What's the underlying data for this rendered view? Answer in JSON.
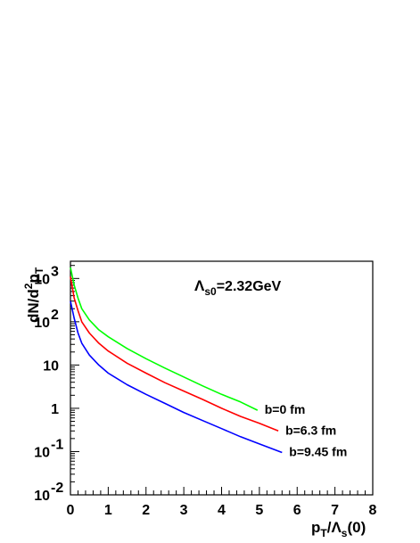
{
  "chart_data": {
    "type": "line",
    "title": "",
    "annotation": "Λ_s0=2.32GeV",
    "xlabel": "p_T/Λ_s(0)",
    "ylabel": "dN/d²p_T",
    "xlim": [
      0,
      8
    ],
    "ylim": [
      0.01,
      2500
    ],
    "yscale": "log",
    "grid": false,
    "x_ticks": [
      "0",
      "1",
      "2",
      "3",
      "4",
      "5",
      "6",
      "7",
      "8"
    ],
    "y_ticks": [
      {
        "value": 0.01,
        "base": "10",
        "exp": "-2"
      },
      {
        "value": 0.1,
        "base": "10",
        "exp": "-1"
      },
      {
        "value": 1,
        "base": "1",
        "exp": ""
      },
      {
        "value": 10,
        "base": "10",
        "exp": ""
      },
      {
        "value": 100,
        "base": "10",
        "exp": "2"
      },
      {
        "value": 1000,
        "base": "10",
        "exp": "3"
      }
    ],
    "series": [
      {
        "name": "b=0 fm",
        "color": "#00ff00",
        "x": [
          0.0,
          0.1,
          0.2,
          0.3,
          0.5,
          0.75,
          1.0,
          1.5,
          2.0,
          2.5,
          3.0,
          3.5,
          4.0,
          4.5,
          4.95
        ],
        "y": [
          1800,
          700,
          350,
          200,
          110,
          65,
          45,
          24,
          14,
          8.5,
          5.3,
          3.3,
          2.1,
          1.4,
          0.9
        ]
      },
      {
        "name": "b=6.3 fm",
        "color": "#ff0000",
        "x": [
          0.0,
          0.1,
          0.2,
          0.3,
          0.5,
          0.75,
          1.0,
          1.5,
          2.0,
          2.5,
          3.0,
          3.5,
          4.0,
          4.5,
          5.0,
          5.5
        ],
        "y": [
          1100,
          350,
          180,
          100,
          55,
          32,
          21,
          11,
          6.5,
          3.9,
          2.5,
          1.6,
          1.0,
          0.65,
          0.45,
          0.3
        ]
      },
      {
        "name": "b=9.45 fm",
        "color": "#0000ff",
        "x": [
          0.0,
          0.1,
          0.2,
          0.3,
          0.5,
          0.75,
          1.0,
          1.5,
          2.0,
          2.5,
          3.0,
          3.5,
          4.0,
          4.5,
          5.0,
          5.6
        ],
        "y": [
          300,
          120,
          55,
          32,
          17,
          10,
          6.5,
          3.5,
          2.1,
          1.3,
          0.8,
          0.52,
          0.34,
          0.22,
          0.15,
          0.095
        ]
      }
    ]
  }
}
